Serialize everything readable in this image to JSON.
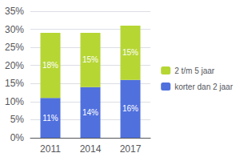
{
  "chart_data": {
    "type": "bar",
    "stacked": true,
    "categories": [
      "2011",
      "2014",
      "2017"
    ],
    "series": [
      {
        "name": "korter dan 2 jaar",
        "values": [
          11,
          14,
          16
        ],
        "value_labels": [
          "11%",
          "14%",
          "16%"
        ]
      },
      {
        "name": "2 t/m 5 jaar",
        "values": [
          18,
          15,
          15
        ],
        "value_labels": [
          "18%",
          "15%",
          "15%"
        ]
      }
    ],
    "ylim": [
      0,
      35
    ],
    "yticks": [
      {
        "value": 0,
        "label": "0%"
      },
      {
        "value": 5,
        "label": "5%"
      },
      {
        "value": 10,
        "label": "10%"
      },
      {
        "value": 15,
        "label": "15%"
      },
      {
        "value": 20,
        "label": "20%"
      },
      {
        "value": 25,
        "label": "25%"
      },
      {
        "value": 30,
        "label": "30%"
      },
      {
        "value": 35,
        "label": "35%"
      }
    ],
    "grid": true,
    "legend": "right",
    "data_labels": true
  }
}
